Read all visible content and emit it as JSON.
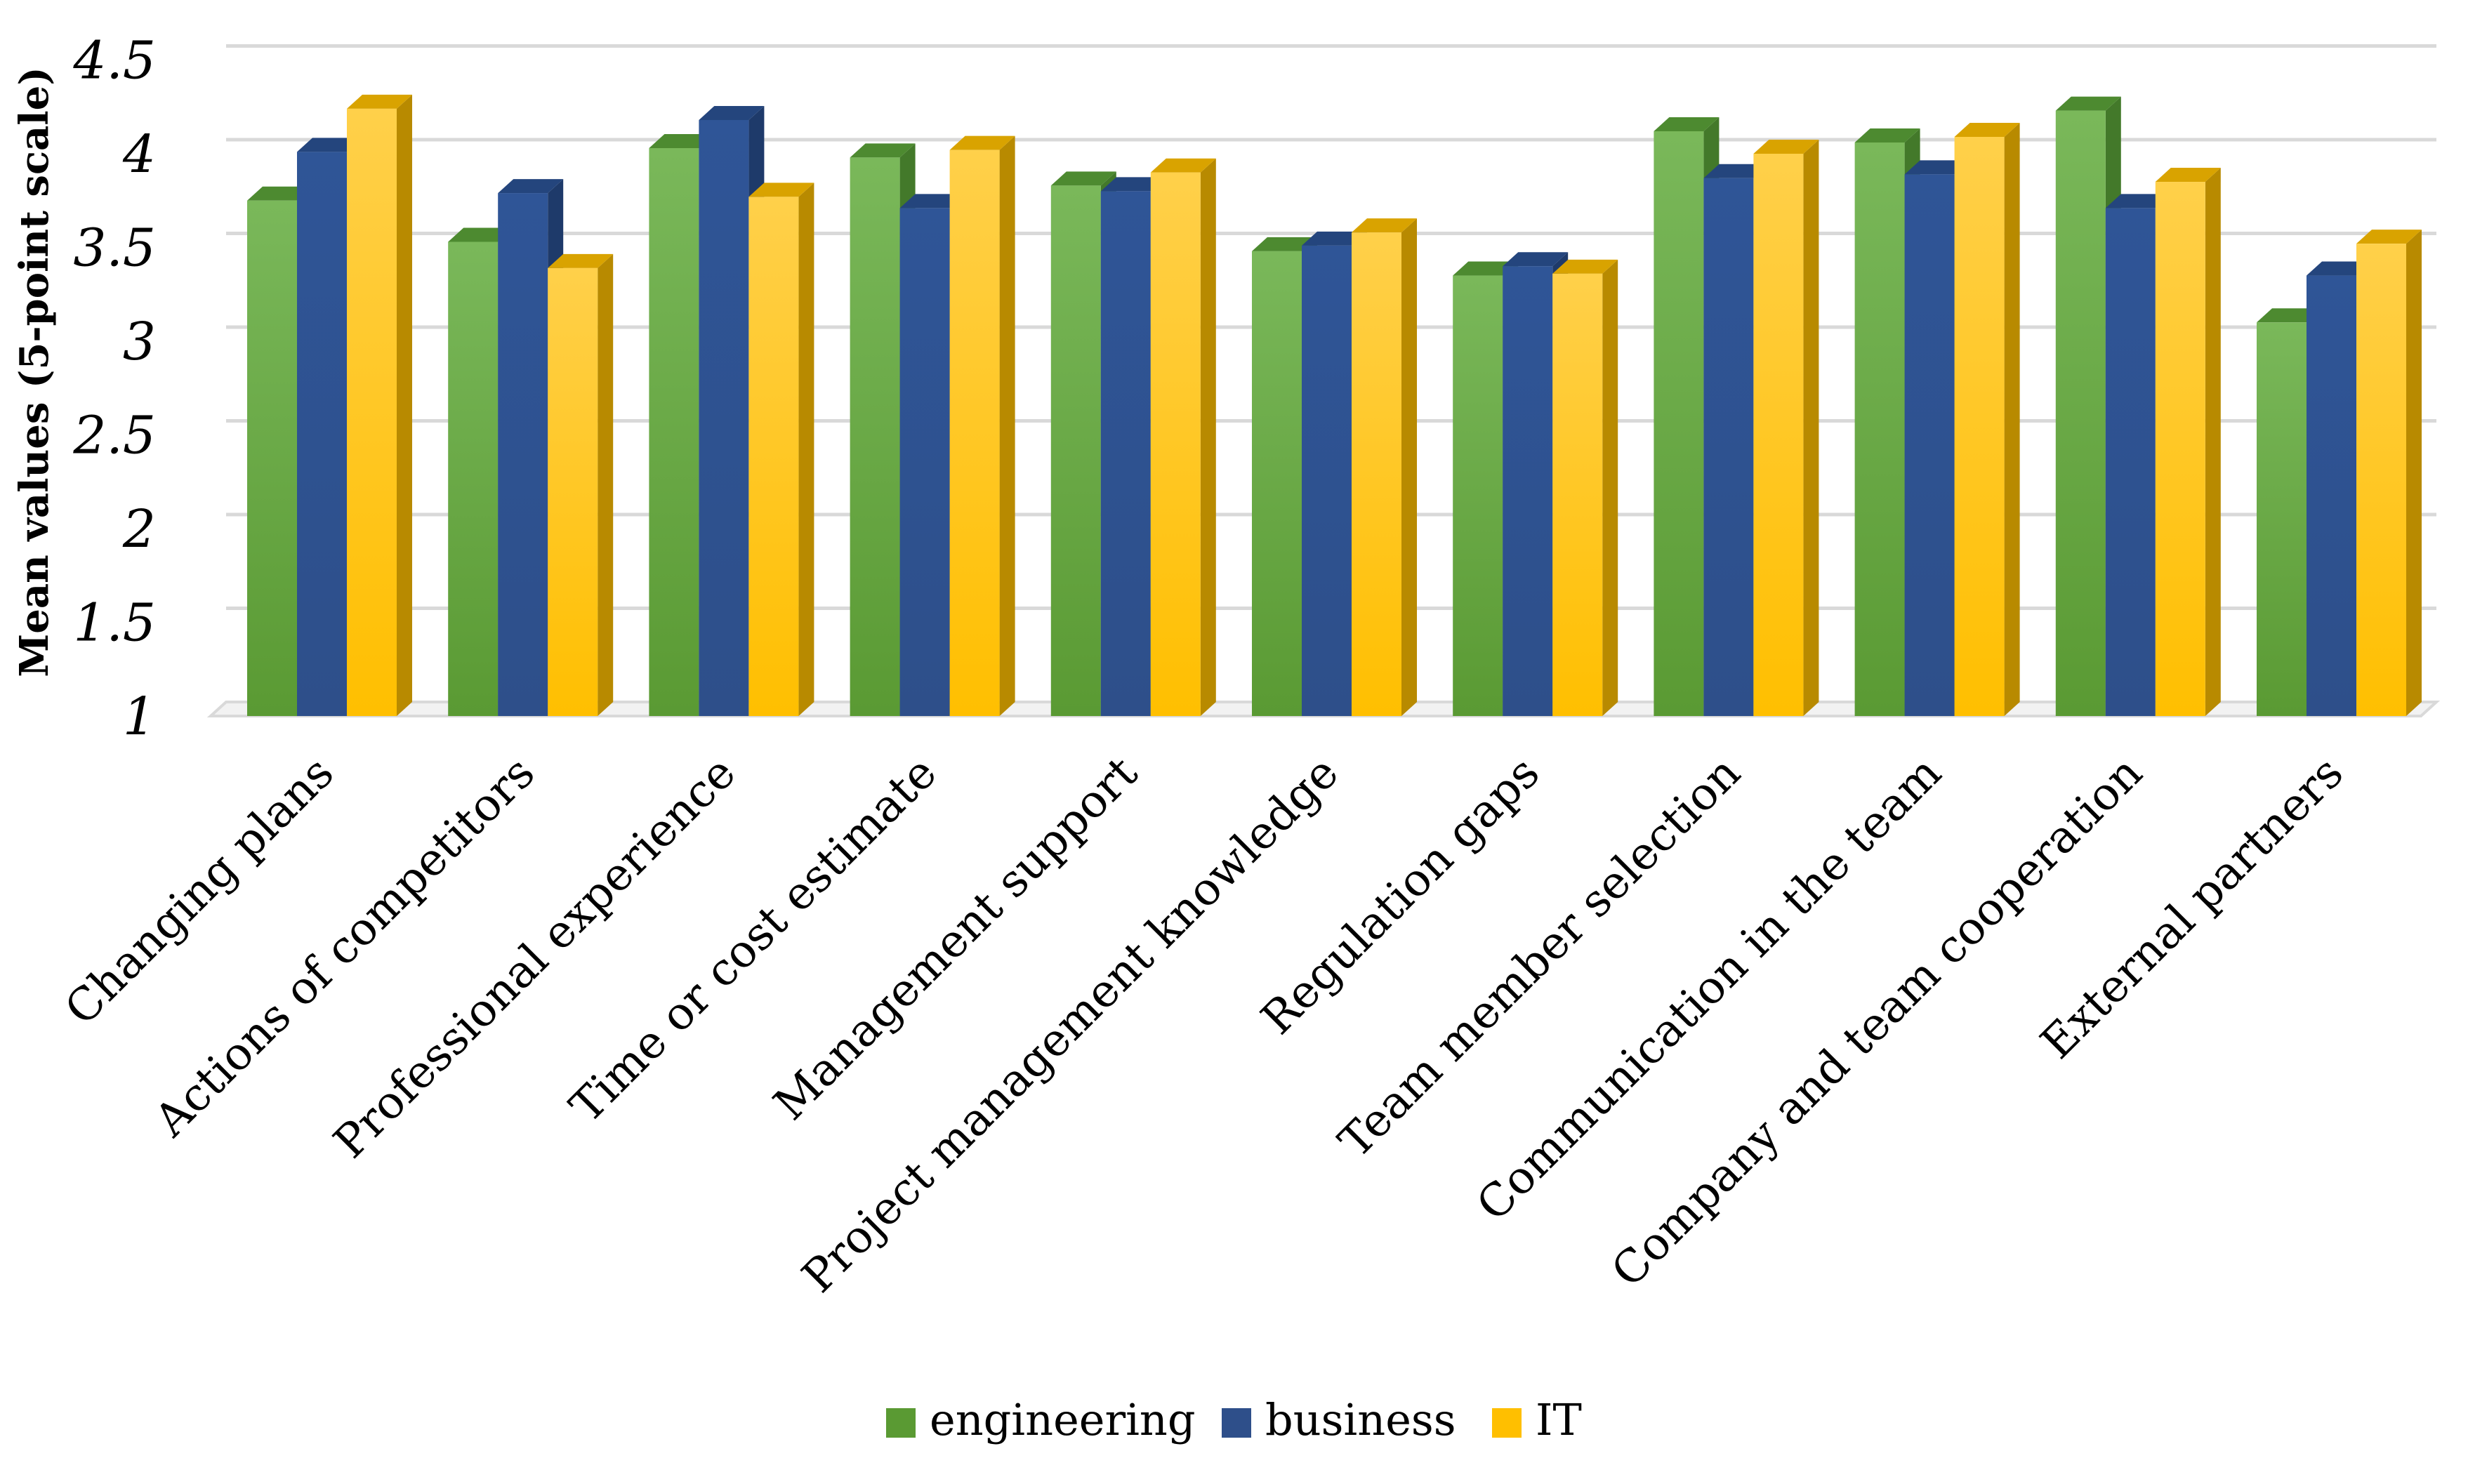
{
  "chart_data": {
    "type": "bar",
    "title": "",
    "xlabel": "",
    "ylabel": "Mean values (5-point scale)",
    "ylim": [
      1,
      4.5
    ],
    "yticks": [
      "1",
      "1.5",
      "2",
      "2.5",
      "3",
      "3.5",
      "4",
      "4.5"
    ],
    "grid": true,
    "legend_position": "bottom",
    "categories": [
      "Changing plans",
      "Actions of competitors",
      "Professional experience",
      "Time or cost estimate",
      "Management support",
      "Project management knowledge",
      "Regulation gaps",
      "Team member selection",
      "Communication in the team",
      "Company and team cooperation",
      "External partners"
    ],
    "series": [
      {
        "name": "engineering",
        "values": [
          3.75,
          3.53,
          4.03,
          3.98,
          3.83,
          3.48,
          3.35,
          4.12,
          4.06,
          4.23,
          3.1
        ]
      },
      {
        "name": "business",
        "values": [
          4.01,
          3.79,
          4.18,
          3.71,
          3.8,
          3.51,
          3.4,
          3.87,
          3.89,
          3.71,
          3.35
        ]
      },
      {
        "name": "IT",
        "values": [
          4.24,
          3.39,
          3.77,
          4.02,
          3.9,
          3.58,
          3.36,
          4.0,
          4.09,
          3.85,
          3.52
        ]
      }
    ]
  },
  "colors": {
    "engineering": {
      "front_top": "#7ab85a",
      "front_bottom": "#5a9a33",
      "side": "#43792a",
      "top": "#4d8a30"
    },
    "business": {
      "front_top": "#2f5597",
      "front_bottom": "#2e4f8a",
      "side": "#1e3a6a",
      "top": "#24457d"
    },
    "IT": {
      "front_top": "#ffd04a",
      "front_bottom": "#ffbf00",
      "side": "#b88a00",
      "top": "#d9a300"
    }
  }
}
